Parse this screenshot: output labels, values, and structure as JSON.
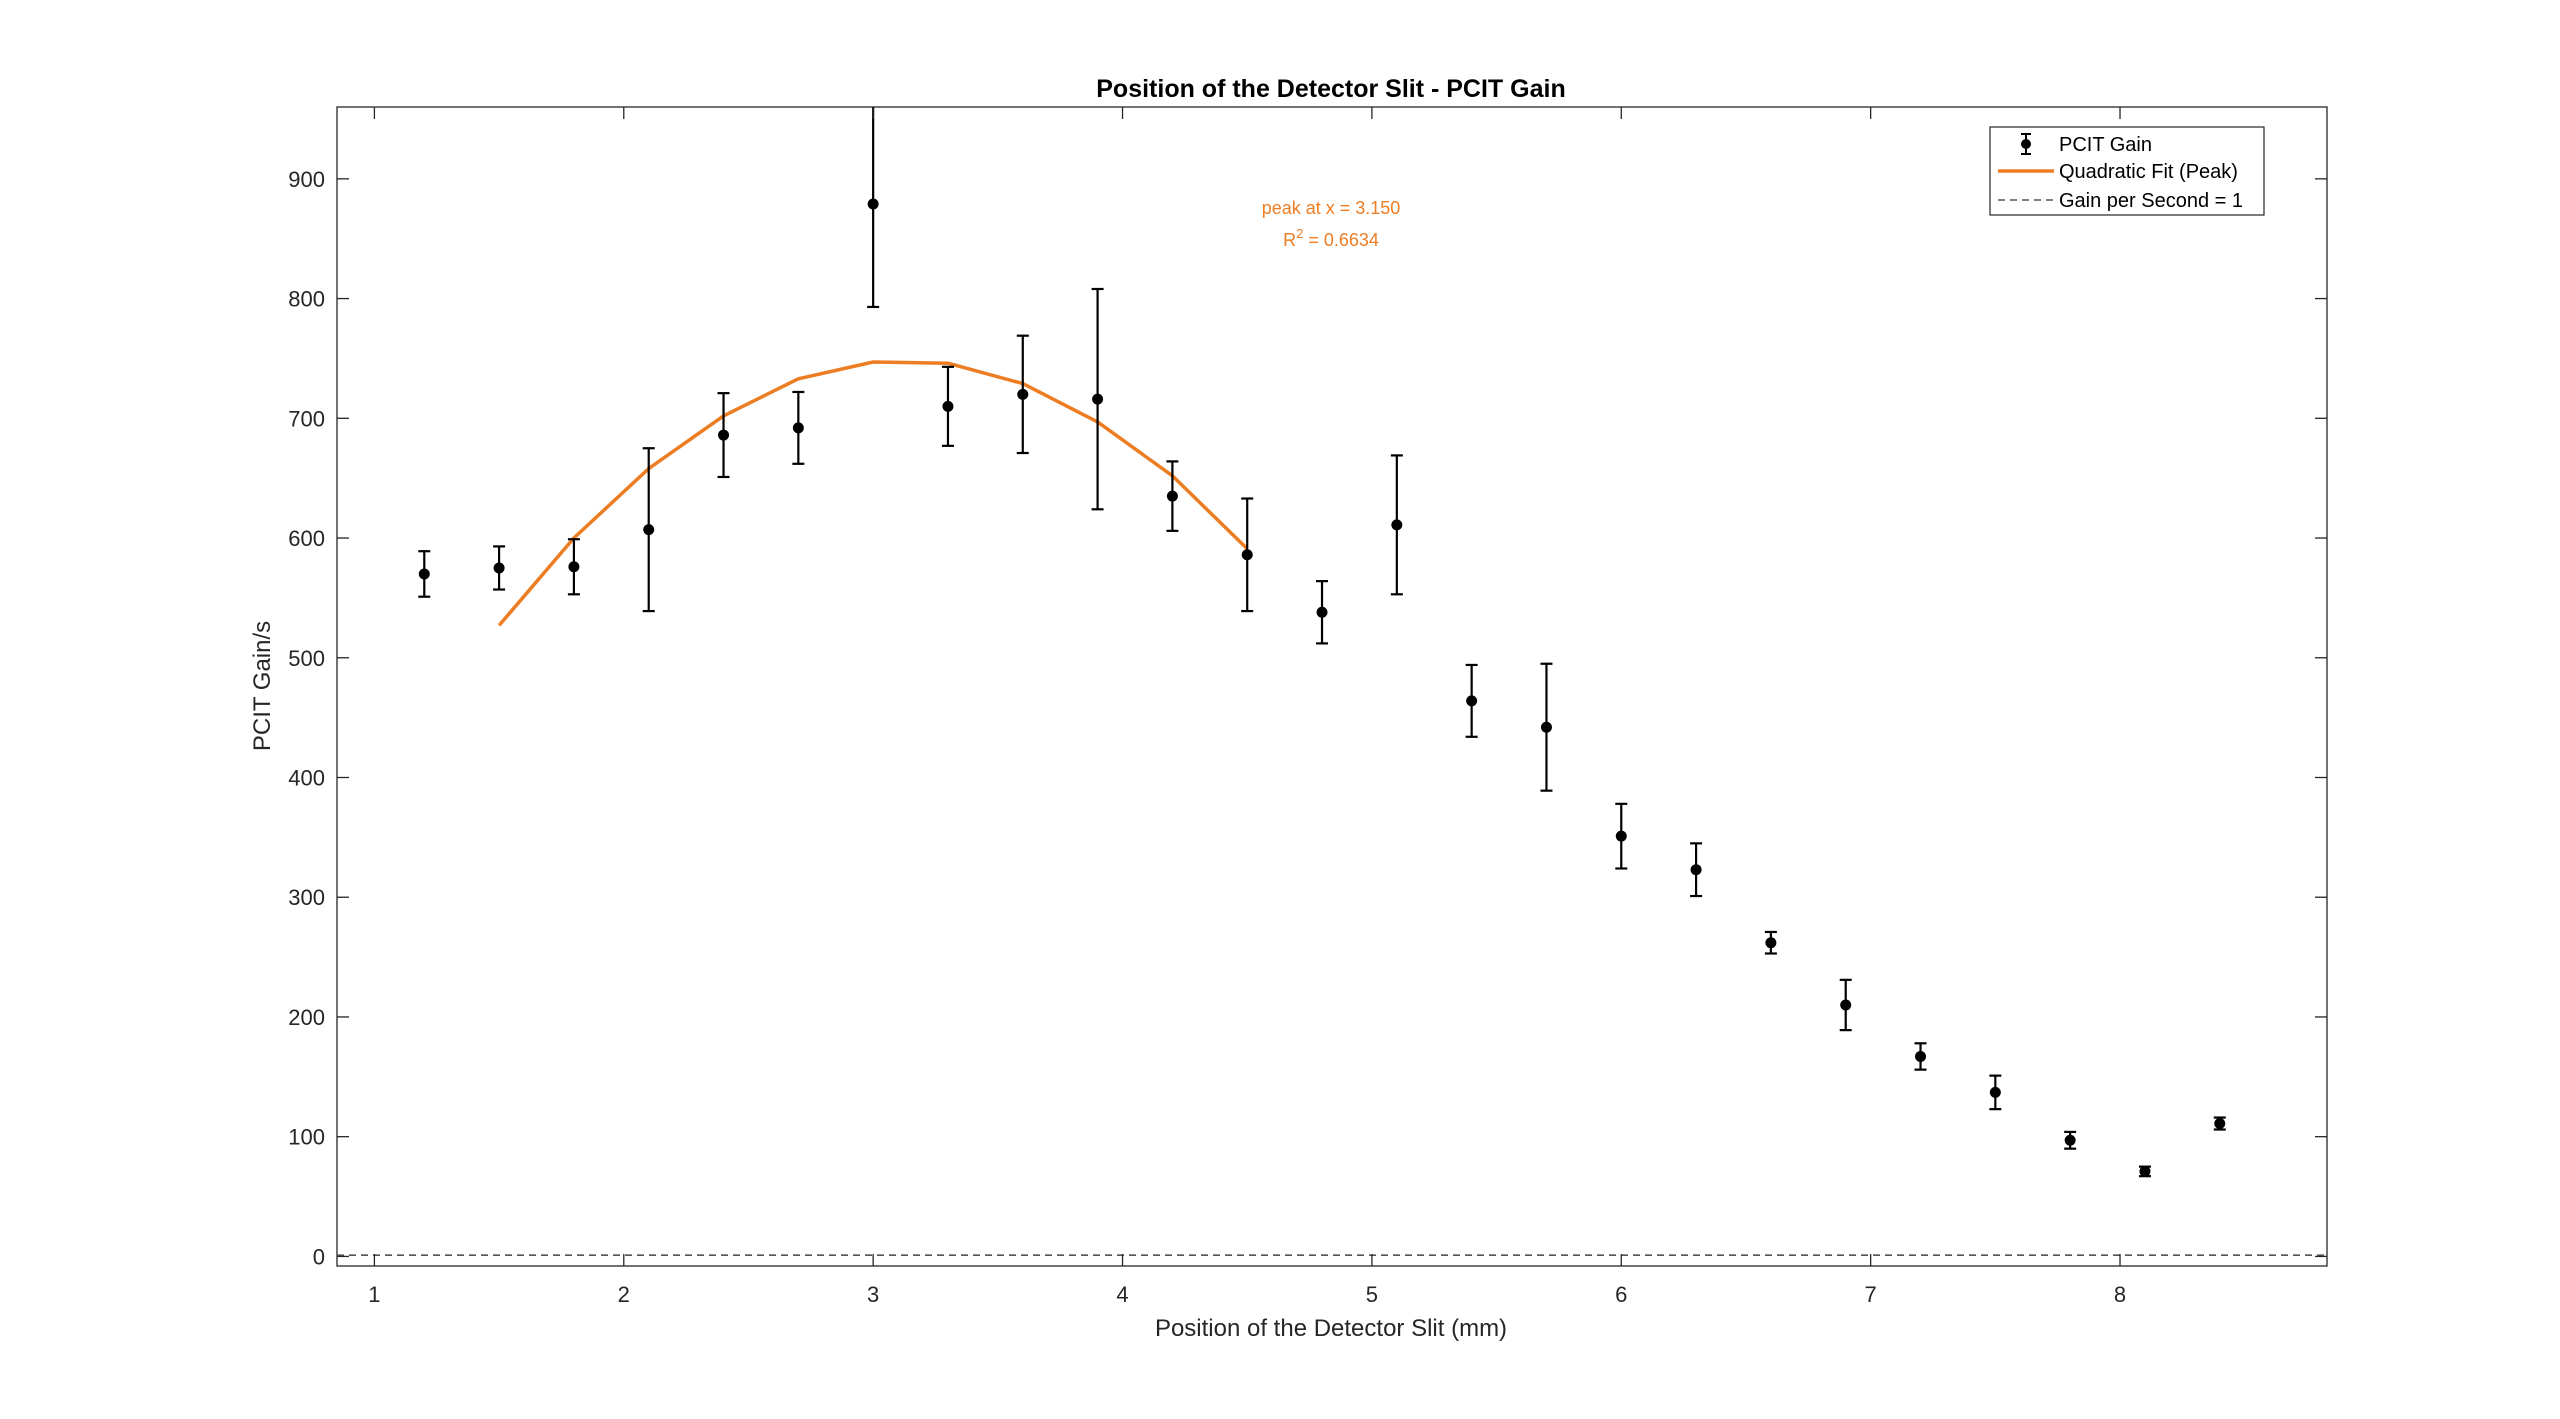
{
  "chart_data": {
    "type": "scatter",
    "title": "Position of the Detector Slit - PCIT Gain",
    "xlabel": "Position of the Detector Slit (mm)",
    "ylabel": "PCIT Gain/s",
    "xlim": [
      0.85,
      8.83
    ],
    "ylim": [
      -8,
      960
    ],
    "xticks": [
      1,
      2,
      3,
      4,
      5,
      6,
      7,
      8
    ],
    "yticks": [
      0,
      100,
      200,
      300,
      400,
      500,
      600,
      700,
      800,
      900
    ],
    "grid": false,
    "legend_position": "top-right",
    "colors": {
      "points": "#000000",
      "fit": "#ED7D22",
      "reference": "#555555",
      "annotation": "#ED7D22"
    },
    "series": [
      {
        "name": "PCIT Gain",
        "kind": "errorbar",
        "x": [
          1.2,
          1.5,
          1.8,
          2.1,
          2.4,
          2.7,
          3.0,
          3.3,
          3.6,
          3.9,
          4.2,
          4.5,
          4.8,
          5.1,
          5.4,
          5.7,
          6.0,
          6.3,
          6.6,
          6.9,
          7.2,
          7.5,
          7.8,
          8.1,
          8.4
        ],
        "y": [
          570,
          575,
          576,
          607,
          686,
          692,
          879,
          710,
          720,
          716,
          635,
          586,
          538,
          611,
          464,
          442,
          351,
          323,
          262,
          210,
          167,
          137,
          97,
          71,
          111
        ],
        "err": [
          19,
          18,
          23,
          68,
          35,
          30,
          86,
          33,
          49,
          92,
          29,
          47,
          26,
          58,
          30,
          53,
          27,
          22,
          9,
          21,
          11,
          14,
          7,
          4,
          5
        ]
      },
      {
        "name": "Quadratic Fit (Peak)",
        "kind": "line",
        "x": [
          1.5,
          1.8,
          2.1,
          2.4,
          2.7,
          3.0,
          3.3,
          3.6,
          3.9,
          4.2,
          4.5
        ],
        "y": [
          527,
          600,
          658,
          702,
          733,
          747,
          746,
          729,
          697,
          652,
          591
        ]
      },
      {
        "name": "Gain per Second = 1",
        "kind": "hline",
        "y": 1
      }
    ],
    "annotations": [
      {
        "text": "peak at x = 3.150"
      },
      {
        "text_base": "R",
        "superscript": "2",
        "text_rest": " = 0.6634"
      }
    ]
  }
}
